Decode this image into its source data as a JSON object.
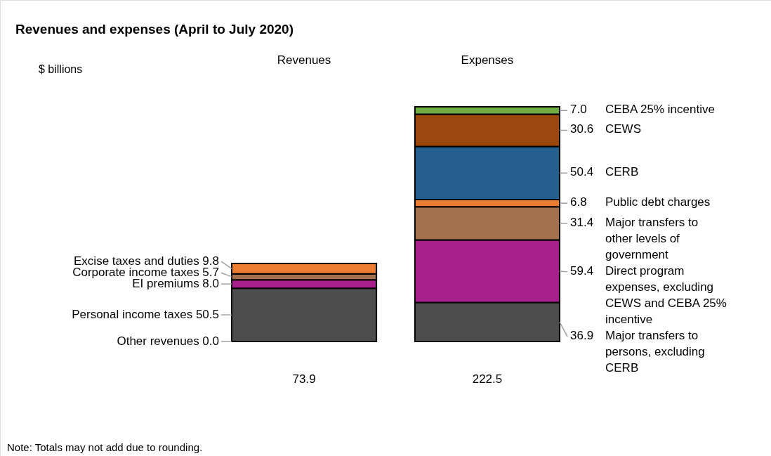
{
  "chart_data": {
    "type": "bar",
    "stacked": true,
    "title": "Revenues and expenses (April to July 2020)",
    "categories": [
      "Revenues",
      "Expenses"
    ],
    "series": [
      {
        "name": "Other revenues",
        "color": "#4d4d4d",
        "values": [
          0.0,
          null
        ],
        "value_labels": [
          "0.0",
          null
        ]
      },
      {
        "name": "Personal income taxes",
        "color": "#4d4d4d",
        "values": [
          50.5,
          null
        ],
        "value_labels": [
          "50.5",
          null
        ]
      },
      {
        "name": "EI premiums",
        "color": "#a61f8a",
        "values": [
          8.0,
          null
        ],
        "value_labels": [
          "8.0",
          null
        ]
      },
      {
        "name": "Corporate income taxes",
        "color": "#a4714e",
        "values": [
          5.7,
          null
        ],
        "value_labels": [
          "5.7",
          null
        ]
      },
      {
        "name": "Excise taxes and duties",
        "color": "#ed7d31",
        "values": [
          9.8,
          null
        ],
        "value_labels": [
          "9.8",
          null
        ]
      },
      {
        "name": "Major transfers to persons, excluding CERB",
        "color": "#4d4d4d",
        "values": [
          null,
          36.9
        ],
        "value_labels": [
          null,
          "36.9"
        ]
      },
      {
        "name": "Direct program expenses, excluding CEWS and CEBA 25% incentive",
        "color": "#a61f8a",
        "values": [
          null,
          59.4
        ],
        "value_labels": [
          null,
          "59.4"
        ]
      },
      {
        "name": "Major transfers to other levels of government",
        "color": "#a4714e",
        "values": [
          null,
          31.4
        ],
        "value_labels": [
          null,
          "31.4"
        ]
      },
      {
        "name": "Public debt charges",
        "color": "#ed7d31",
        "values": [
          null,
          6.8
        ],
        "value_labels": [
          null,
          "6.8"
        ]
      },
      {
        "name": "CERB",
        "color": "#245f8f",
        "values": [
          null,
          50.4
        ],
        "value_labels": [
          null,
          "50.4"
        ]
      },
      {
        "name": "CEWS",
        "color": "#9c470e",
        "values": [
          null,
          30.6
        ],
        "value_labels": [
          null,
          "30.6"
        ]
      },
      {
        "name": "CEBA 25% incentive",
        "color": "#70ad47",
        "values": [
          null,
          7.0
        ],
        "value_labels": [
          null,
          "7.0"
        ]
      }
    ],
    "totals": [
      "73.9",
      "222.5"
    ],
    "annotations": [
      "$ billions",
      "Note: Totals may not add due to rounding."
    ]
  }
}
